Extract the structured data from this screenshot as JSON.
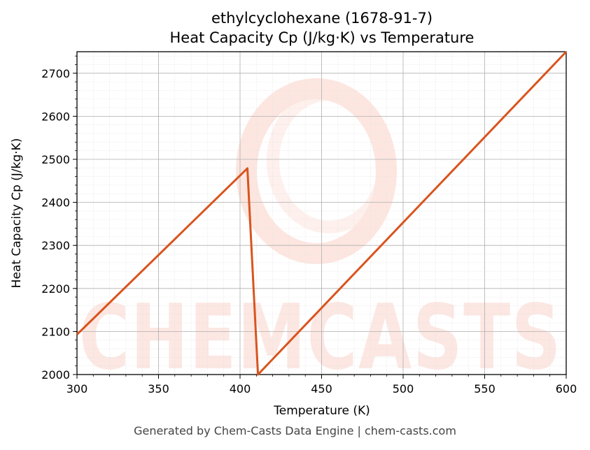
{
  "chart_data": {
    "type": "line",
    "title_line1": "ethylcyclohexane (1678-91-7)",
    "title_line2": "Heat Capacity Cp (J/kg·K) vs Temperature",
    "xlabel": "Temperature (K)",
    "ylabel": "Heat Capacity Cp (J/kg·K)",
    "xlim": [
      300,
      600
    ],
    "ylim": [
      2000,
      2750
    ],
    "xticks": [
      300,
      350,
      400,
      450,
      500,
      550,
      600
    ],
    "yticks": [
      2000,
      2100,
      2200,
      2300,
      2400,
      2500,
      2600,
      2700
    ],
    "grid": true,
    "series": [
      {
        "color": "#d9541e",
        "x": [
          300,
          404.5,
          411,
          600
        ],
        "y": [
          2093,
          2479,
          2000,
          2750
        ]
      }
    ]
  },
  "watermark": {
    "text": "CHEMCASTS",
    "color": "#fbd5cc"
  },
  "footer": "Generated by Chem-Casts Data Engine | chem-casts.com"
}
